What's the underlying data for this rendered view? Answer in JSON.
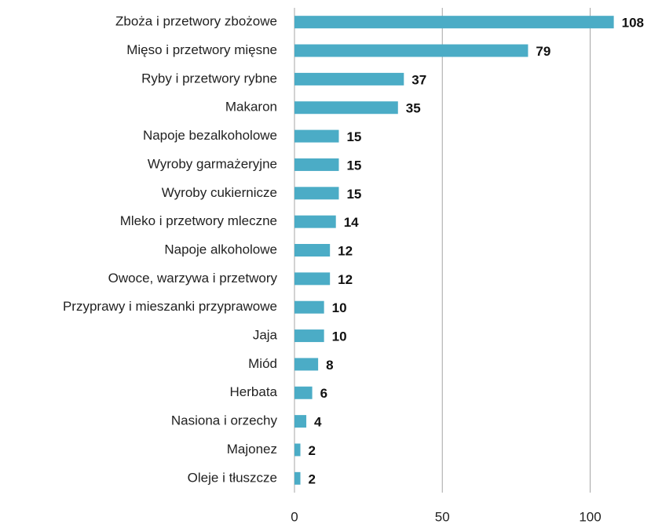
{
  "chart_data": {
    "type": "barh",
    "categories": [
      "Zboża i przetwory zbożowe",
      "Mięso i przetwory mięsne",
      "Ryby i przetwory rybne",
      "Makaron",
      "Napoje bezalkoholowe",
      "Wyroby garmażeryjne",
      "Wyroby cukiernicze",
      "Mleko i przetwory mleczne",
      "Napoje alkoholowe",
      "Owoce, warzywa i przetwory",
      "Przyprawy i mieszanki przyprawowe",
      "Jaja",
      "Miód",
      "Herbata",
      "Nasiona i orzechy",
      "Majonez",
      "Oleje i tłuszcze"
    ],
    "values": [
      108,
      79,
      37,
      35,
      15,
      15,
      15,
      14,
      12,
      12,
      10,
      10,
      8,
      6,
      4,
      2,
      2
    ],
    "color": "#4bacc6",
    "xlim": [
      0,
      120
    ],
    "xticks": [
      0,
      50,
      100
    ],
    "grid": true
  }
}
